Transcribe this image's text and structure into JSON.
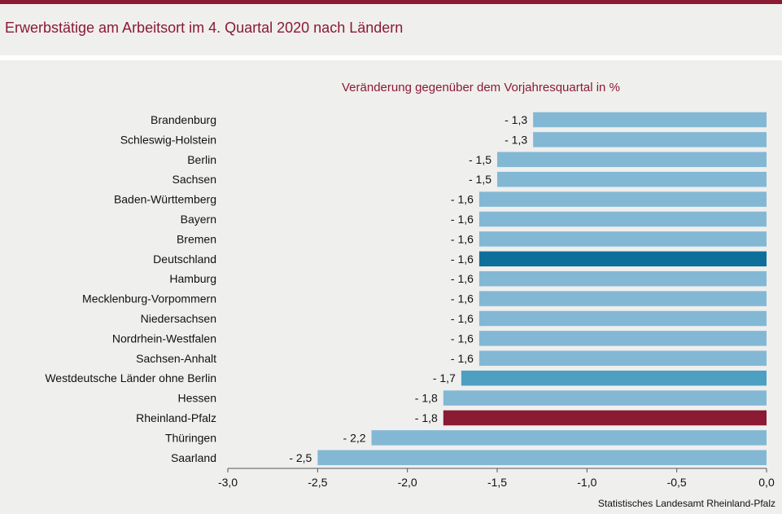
{
  "title": "Erwerbstätige am Arbeitsort im 4. Quartal 2020 nach Ländern",
  "source": "Statistisches Landesamt Rheinland-Pfalz",
  "colors": {
    "accent": "#8b1a33",
    "bar_default": "#83b8d4",
    "bar_germany": "#0f6f9b",
    "bar_west": "#4ea0c2",
    "bar_rlp": "#8b1a33",
    "background": "#efefee"
  },
  "chart_data": {
    "type": "bar",
    "orientation": "horizontal",
    "title": "Veränderung gegenüber dem Vorjahresquartal in %",
    "xlabel": "",
    "ylabel": "",
    "xlim": [
      -3.0,
      0.0
    ],
    "x_ticks": [
      -3.0,
      -2.5,
      -2.0,
      -1.5,
      -1.0,
      -0.5,
      0.0
    ],
    "x_tick_labels": [
      "-3,0",
      "-2,5",
      "-2,0",
      "-1,5",
      "-1,0",
      "-0,5",
      "0,0"
    ],
    "grid": false,
    "categories": [
      "Brandenburg",
      "Schleswig-Holstein",
      "Berlin",
      "Sachsen",
      "Baden-Württemberg",
      "Bayern",
      "Bremen",
      "Deutschland",
      "Hamburg",
      "Mecklenburg-Vorpommern",
      "Niedersachsen",
      "Nordrhein-Westfalen",
      "Sachsen-Anhalt",
      "Westdeutsche Länder ohne Berlin",
      "Hessen",
      "Rheinland-Pfalz",
      "Thüringen",
      "Saarland"
    ],
    "values": [
      -1.3,
      -1.3,
      -1.5,
      -1.5,
      -1.6,
      -1.6,
      -1.6,
      -1.6,
      -1.6,
      -1.6,
      -1.6,
      -1.6,
      -1.6,
      -1.7,
      -1.8,
      -1.8,
      -2.2,
      -2.5
    ],
    "value_labels": [
      "- 1,3",
      "- 1,3",
      "- 1,5",
      "- 1,5",
      "- 1,6",
      "- 1,6",
      "- 1,6",
      "- 1,6",
      "- 1,6",
      "- 1,6",
      "- 1,6",
      "- 1,6",
      "- 1,6",
      "- 1,7",
      "- 1,8",
      "- 1,8",
      "- 2,2",
      "- 2,5"
    ],
    "highlight": {
      "Deutschland": "bar_germany",
      "Westdeutsche Länder ohne Berlin": "bar_west",
      "Rheinland-Pfalz": "bar_rlp"
    }
  }
}
